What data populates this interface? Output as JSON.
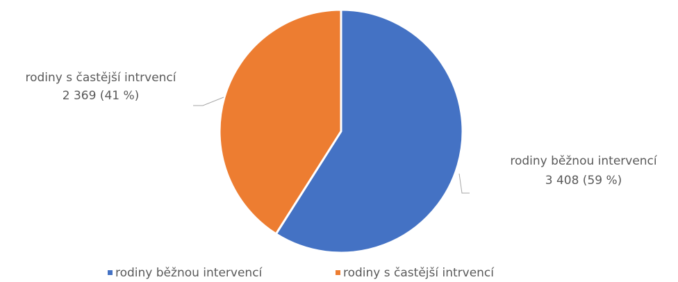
{
  "chart_data": {
    "type": "pie",
    "categories": [
      "rodiny běžnou intervencí",
      "rodiny s častější intrvencí"
    ],
    "values": [
      3408,
      2369
    ],
    "value_labels": [
      "3 408 (59 %)",
      "2 369 (41 %)"
    ],
    "colors": [
      "#4472c4",
      "#ed7d31"
    ],
    "legend": "bottom"
  }
}
